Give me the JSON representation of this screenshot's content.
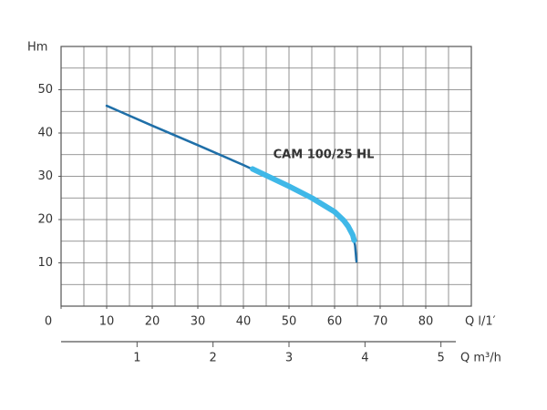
{
  "chart_data": {
    "type": "line",
    "y_label": "Hm",
    "x_label": "Q l/1′",
    "x2_label": "Q m³/h",
    "xlim": [
      0,
      90
    ],
    "xticks": [
      0,
      10,
      20,
      30,
      40,
      50,
      60,
      70,
      80
    ],
    "ylim": [
      0,
      60
    ],
    "yticks": [
      10,
      20,
      30,
      40,
      50
    ],
    "x2lim": [
      0,
      5.4
    ],
    "x2ticks": [
      1,
      2,
      3,
      4,
      5
    ],
    "grid": true,
    "grid_step": 5,
    "series": [
      {
        "name": "CAM 100/25 HL",
        "color": "#1f6fa8",
        "width": 2.5,
        "x": [
          10,
          20,
          30,
          40,
          50,
          55,
          60,
          62,
          63,
          64,
          64.5,
          64.8
        ],
        "values": [
          46.3,
          41.7,
          37.2,
          32.6,
          27.7,
          25.0,
          21.8,
          19.8,
          18.4,
          16.4,
          14.0,
          10.3
        ]
      },
      {
        "color": "#3fb8e8",
        "width": 6,
        "x": [
          42,
          50,
          55,
          60,
          62,
          63,
          64,
          64.3
        ],
        "values": [
          31.7,
          27.7,
          25.0,
          21.8,
          19.8,
          18.4,
          16.4,
          15.2
        ]
      }
    ]
  }
}
